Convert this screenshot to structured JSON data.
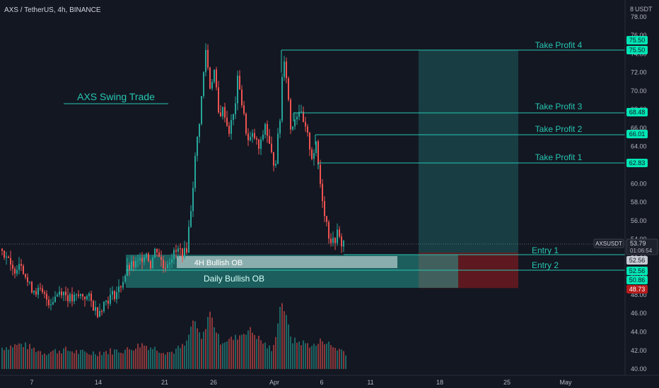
{
  "header": {
    "symbol_title": "AXS / TetherUS, 4h, BINANCE",
    "currency_label": "USDT",
    "currency_prefix": "8"
  },
  "annotations": {
    "swing_title": "AXS Swing Trade",
    "ob_4h": "4H Bullish OB",
    "ob_daily": "Daily Bullish OB",
    "tp4": "Take Profit 4",
    "tp3": "Take Profit 3",
    "tp2": "Take Profit 2",
    "tp1": "Take Profit 1",
    "entry1": "Entry 1",
    "entry2": "Entry 2"
  },
  "price_tags": {
    "tp4_top": "75.50",
    "tp4": "75.50",
    "tp3": "68.48",
    "tp2": "66.01",
    "tp1": "62.83",
    "current_symbol": "AXSUSDT",
    "current_price": "53.79",
    "countdown": "01:06:54",
    "entry1": "52.56",
    "entry2": "52.56",
    "entry2_low": "50.86",
    "stop": "48.73"
  },
  "colors": {
    "background": "#131722",
    "up": "#26a69a",
    "down": "#ef5350",
    "target_line": "#26c6b0",
    "tag_green": "#00e5b5",
    "tag_red": "#b71c1c",
    "axis_text": "#b2b5be"
  },
  "chart_data": {
    "type": "candlestick",
    "title": "AXS / TetherUS, 4h, BINANCE",
    "y_axis": {
      "ticks": [
        "78.00",
        "76.00",
        "74.00",
        "72.00",
        "70.00",
        "68.00",
        "66.00",
        "64.00",
        "62.00",
        "60.00",
        "58.00",
        "56.00",
        "54.00",
        "52.00",
        "50.00",
        "48.00",
        "46.00",
        "44.00",
        "42.00",
        "40.00"
      ],
      "range": [
        39.7,
        79.2
      ]
    },
    "x_axis": {
      "ticks": [
        "7",
        "14",
        "21",
        "26",
        "Apr",
        "6",
        "11",
        "18",
        "25",
        "May"
      ]
    },
    "price_path": [
      [
        0,
        53.0
      ],
      [
        8,
        52.2
      ],
      [
        16,
        50.4
      ],
      [
        28,
        51.8
      ],
      [
        40,
        48.9
      ],
      [
        55,
        48.3
      ],
      [
        70,
        47.2
      ],
      [
        85,
        48.6
      ],
      [
        100,
        47.4
      ],
      [
        115,
        48.0
      ],
      [
        125,
        47.6
      ],
      [
        136,
        46.1
      ],
      [
        150,
        47.5
      ],
      [
        166,
        48.4
      ],
      [
        180,
        50.9
      ],
      [
        195,
        51.4
      ],
      [
        205,
        52.8
      ],
      [
        212,
        51.3
      ],
      [
        220,
        53.2
      ],
      [
        230,
        51.0
      ],
      [
        242,
        52.2
      ],
      [
        252,
        52.8
      ],
      [
        262,
        52.4
      ],
      [
        268,
        56.5
      ],
      [
        276,
        63.5
      ],
      [
        282,
        67.5
      ],
      [
        290,
        74.5
      ],
      [
        296,
        70.5
      ],
      [
        302,
        72.2
      ],
      [
        308,
        67.5
      ],
      [
        316,
        68.0
      ],
      [
        322,
        65.5
      ],
      [
        330,
        67.5
      ],
      [
        336,
        71.8
      ],
      [
        342,
        68.0
      ],
      [
        350,
        64.5
      ],
      [
        358,
        65.2
      ],
      [
        366,
        63.5
      ],
      [
        374,
        66.5
      ],
      [
        382,
        63.2
      ],
      [
        388,
        62.0
      ],
      [
        395,
        67.0
      ],
      [
        400,
        74.4
      ],
      [
        405,
        71.0
      ],
      [
        410,
        66.0
      ],
      [
        416,
        67.2
      ],
      [
        422,
        68.0
      ],
      [
        428,
        66.4
      ],
      [
        434,
        65.0
      ],
      [
        440,
        63.0
      ],
      [
        446,
        64.0
      ],
      [
        452,
        60.0
      ],
      [
        458,
        57.0
      ],
      [
        464,
        54.5
      ],
      [
        470,
        53.6
      ],
      [
        476,
        54.6
      ],
      [
        481,
        53.5
      ],
      [
        487,
        53.8
      ]
    ],
    "volume": [
      [
        0,
        42.2
      ],
      [
        30,
        42.6
      ],
      [
        60,
        41.7
      ],
      [
        90,
        42.0
      ],
      [
        120,
        41.6
      ],
      [
        150,
        41.8
      ],
      [
        180,
        42.0
      ],
      [
        200,
        42.6
      ],
      [
        215,
        42.2
      ],
      [
        240,
        41.7
      ],
      [
        262,
        42.5
      ],
      [
        272,
        45.2
      ],
      [
        285,
        43.0
      ],
      [
        295,
        46.2
      ],
      [
        310,
        42.9
      ],
      [
        330,
        43.2
      ],
      [
        352,
        44.2
      ],
      [
        368,
        43.0
      ],
      [
        385,
        41.8
      ],
      [
        397,
        47.5
      ],
      [
        412,
        43.0
      ],
      [
        430,
        42.7
      ],
      [
        445,
        42.4
      ],
      [
        455,
        43.1
      ],
      [
        470,
        42.3
      ],
      [
        487,
        41.8
      ]
    ],
    "levels": [
      {
        "name": "Take Profit 4",
        "value": 75.5
      },
      {
        "name": "Take Profit 3",
        "value": 68.48
      },
      {
        "name": "Take Profit 2",
        "value": 66.01
      },
      {
        "name": "Take Profit 1",
        "value": 62.83
      },
      {
        "name": "Entry 1",
        "value": 52.56
      },
      {
        "name": "Entry 2",
        "value": 50.86
      },
      {
        "name": "Stop",
        "value": 48.73
      }
    ],
    "current_price": 53.79,
    "zones": [
      {
        "name": "4H Bullish OB",
        "from": 51.5,
        "to": 52.8
      },
      {
        "name": "Daily Bullish OB",
        "from": 49.9,
        "to": 51.5
      },
      {
        "name": "target",
        "from": 52.56,
        "to": 75.5
      },
      {
        "name": "risk",
        "from": 48.73,
        "to": 52.56
      }
    ]
  }
}
